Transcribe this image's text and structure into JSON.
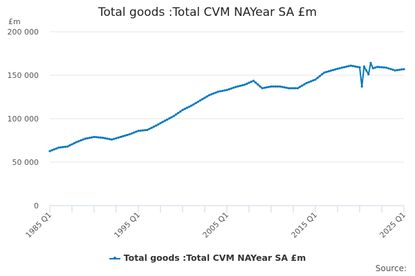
{
  "chart_data": {
    "type": "line",
    "title": "Total goods :Total CVM NAYear SA £m",
    "ylabel": "£m",
    "xlabel": "",
    "ylim": [
      0,
      200000
    ],
    "xlim": [
      1985,
      2025
    ],
    "y_ticks": [
      0,
      50000,
      100000,
      150000,
      200000
    ],
    "y_tick_labels": [
      "0",
      "50 000",
      "100 000",
      "150 000",
      "200 000"
    ],
    "x_ticks": [
      1985,
      1995,
      2005,
      2015,
      2025
    ],
    "x_tick_labels": [
      "1985 Q1",
      "1995 Q1",
      "2005 Q1",
      "2015 Q1",
      "2025 Q1"
    ],
    "grid": true,
    "legend_position": "bottom",
    "series": [
      {
        "name": "Total goods :Total CVM NAYear SA £m",
        "color": "#0077c0",
        "x": [
          1985,
          1986,
          1987,
          1988,
          1989,
          1990,
          1991,
          1992,
          1993,
          1994,
          1995,
          1996,
          1997,
          1998,
          1999,
          2000,
          2001,
          2002,
          2003,
          2004,
          2005,
          2006,
          2007,
          2008,
          2009,
          2010,
          2011,
          2012,
          2013,
          2014,
          2015,
          2016,
          2017,
          2018,
          2019,
          2020,
          2020.25,
          2020.5,
          2021,
          2021.25,
          2021.5,
          2022,
          2023,
          2024,
          2025
        ],
        "values": [
          62700,
          66700,
          68000,
          73000,
          77000,
          79000,
          78000,
          76000,
          79000,
          82000,
          86000,
          87000,
          92000,
          97600,
          103000,
          110000,
          115000,
          121000,
          127000,
          131000,
          133000,
          136500,
          139000,
          143600,
          135000,
          137000,
          137000,
          135000,
          135000,
          141000,
          145000,
          153000,
          156000,
          158700,
          161000,
          159000,
          137000,
          160000,
          151000,
          164000,
          158000,
          159500,
          158700,
          155500,
          157000
        ]
      }
    ]
  },
  "source_label": "Source:"
}
